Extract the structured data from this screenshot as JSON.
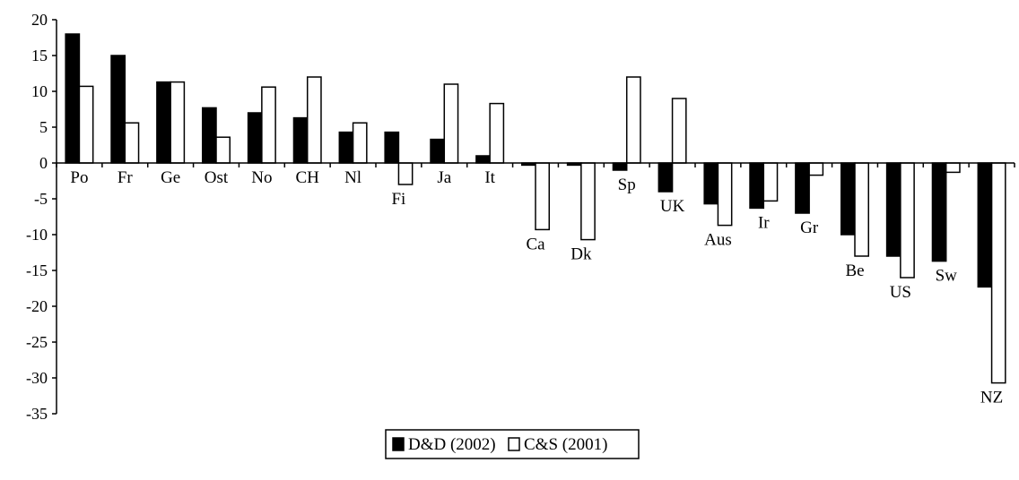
{
  "chart_data": {
    "type": "bar",
    "categories": [
      "Po",
      "Fr",
      "Ge",
      "Ost",
      "No",
      "CH",
      "Nl",
      "Fi",
      "Ja",
      "It",
      "Ca",
      "Dk",
      "Sp",
      "UK",
      "Aus",
      "Ir",
      "Gr",
      "Be",
      "US",
      "Sw",
      "NZ"
    ],
    "series": [
      {
        "name": "D&D (2002)",
        "color": "#000000",
        "values": [
          18,
          15,
          11.3,
          7.7,
          7,
          6.3,
          4.3,
          4.3,
          3.3,
          1,
          -0.3,
          -0.3,
          -1,
          -4,
          -5.7,
          -6.3,
          -7,
          -10,
          -13,
          -13.7,
          -17.3
        ]
      },
      {
        "name": "C&S (2001)",
        "color": "#ffffff",
        "values": [
          10.7,
          5.6,
          11.3,
          3.6,
          10.6,
          12,
          5.6,
          -3,
          11,
          8.3,
          -9.3,
          -10.7,
          12,
          9,
          -8.7,
          -5.3,
          -1.7,
          -13,
          -16,
          -1.3,
          -30.7
        ]
      }
    ],
    "ylim": [
      -35,
      20
    ],
    "yticks": [
      "20",
      "15",
      "10",
      "5",
      "0",
      "-5",
      "-10",
      "-15",
      "-20",
      "-25",
      "-30",
      "-35"
    ],
    "title": "",
    "xlabel": "",
    "ylabel": "",
    "legend_position": "bottom-center",
    "grid": false
  }
}
